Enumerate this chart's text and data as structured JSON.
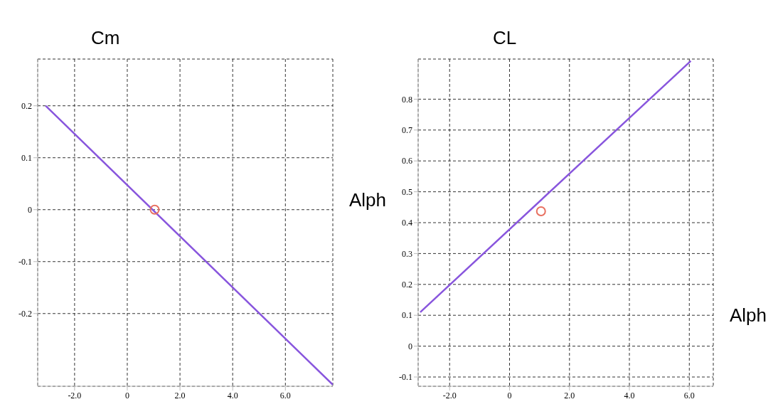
{
  "chart_data": [
    {
      "type": "line",
      "title": "Cm",
      "xlabel": "Alph",
      "xlim": [
        -3.4,
        7.8
      ],
      "ylim": [
        -0.34,
        0.29
      ],
      "xticks": [
        {
          "value": -2,
          "label": "-2.0"
        },
        0,
        {
          "value": 2,
          "label": "2.0"
        },
        {
          "value": 4,
          "label": "4.0"
        },
        {
          "value": 6,
          "label": "6.0"
        }
      ],
      "yticks": [
        -0.2,
        -0.1,
        0,
        0.1,
        0.2
      ],
      "grid": true,
      "series": [
        {
          "color": "#8855dd",
          "x": [
            -3.1,
            7.8
          ],
          "values": [
            0.2,
            -0.337
          ],
          "marker": "none"
        },
        {
          "type": "scatter",
          "color": "#e87060",
          "x": [
            1.04
          ],
          "values": [
            0.0
          ],
          "marker": "circle"
        }
      ]
    },
    {
      "type": "line",
      "title": "CL",
      "xlabel": "Alph",
      "xlim": [
        -3.05,
        6.8
      ],
      "ylim": [
        -0.13,
        0.93
      ],
      "xticks": [
        {
          "value": -2,
          "label": "-2.0"
        },
        0,
        {
          "value": 2,
          "label": "2.0"
        },
        {
          "value": 4,
          "label": "4.0"
        },
        {
          "value": 6,
          "label": "6.0"
        }
      ],
      "yticks": [
        -0.1,
        0,
        0.1,
        0.2,
        0.3,
        0.4,
        0.5,
        0.6,
        0.7,
        0.8
      ],
      "grid": true,
      "series": [
        {
          "color": "#8855dd",
          "x": [
            -2.98,
            6.05
          ],
          "values": [
            0.11,
            0.924
          ],
          "marker": "none"
        },
        {
          "type": "scatter",
          "color": "#e87060",
          "x": [
            1.05
          ],
          "values": [
            0.437
          ],
          "marker": "circle"
        }
      ]
    }
  ]
}
